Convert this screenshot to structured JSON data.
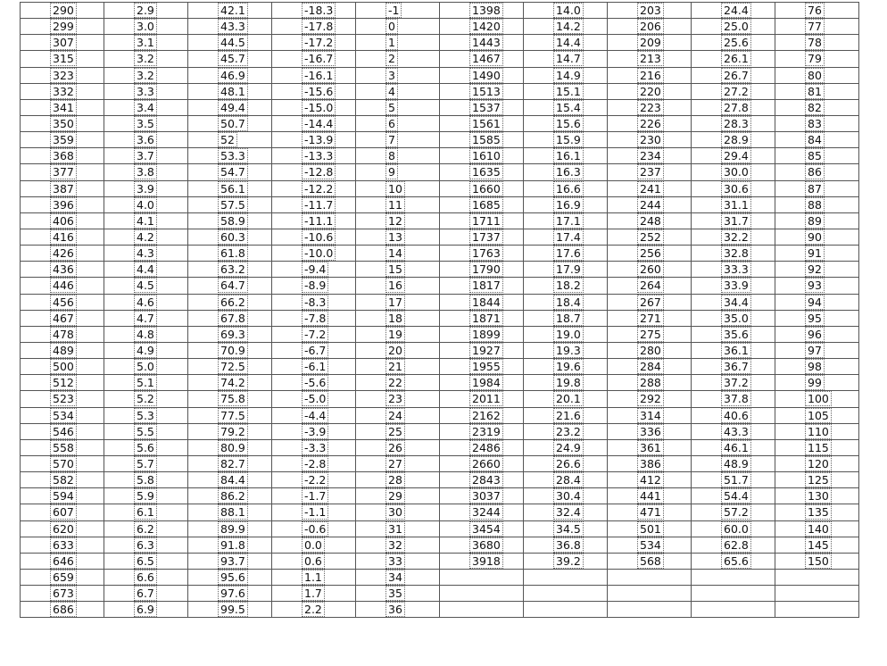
{
  "table": {
    "rows": [
      [
        "290",
        "2.9",
        "42.1",
        "-18.3",
        "-1",
        "1398",
        "14.0",
        "203",
        "24.4",
        "76"
      ],
      [
        "299",
        "3.0",
        "43.3",
        "-17.8",
        "0",
        "1420",
        "14.2",
        "206",
        "25.0",
        "77"
      ],
      [
        "307",
        "3.1",
        "44.5",
        "-17.2",
        "1",
        "1443",
        "14.4",
        "209",
        "25.6",
        "78"
      ],
      [
        "315",
        "3.2",
        "45.7",
        "-16.7",
        "2",
        "1467",
        "14.7",
        "213",
        "26.1",
        "79"
      ],
      [
        "323",
        "3.2",
        "46.9",
        "-16.1",
        "3",
        "1490",
        "14.9",
        "216",
        "26.7",
        "80"
      ],
      [
        "332",
        "3.3",
        "48.1",
        "-15.6",
        "4",
        "1513",
        "15.1",
        "220",
        "27.2",
        "81"
      ],
      [
        "341",
        "3.4",
        "49.4",
        "-15.0",
        "5",
        "1537",
        "15.4",
        "223",
        "27.8",
        "82"
      ],
      [
        "350",
        "3.5",
        "50.7",
        "-14.4",
        "6",
        "1561",
        "15.6",
        "226",
        "28.3",
        "83"
      ],
      [
        "359",
        "3.6",
        "52",
        "-13.9",
        "7",
        "1585",
        "15.9",
        "230",
        "28.9",
        "84"
      ],
      [
        "368",
        "3.7",
        "53.3",
        "-13.3",
        "8",
        "1610",
        "16.1",
        "234",
        "29.4",
        "85"
      ],
      [
        "377",
        "3.8",
        "54.7",
        "-12.8",
        "9",
        "1635",
        "16.3",
        "237",
        "30.0",
        "86"
      ],
      [
        "387",
        "3.9",
        "56.1",
        "-12.2",
        "10",
        "1660",
        "16.6",
        "241",
        "30.6",
        "87"
      ],
      [
        "396",
        "4.0",
        "57.5",
        "-11.7",
        "11",
        "1685",
        "16.9",
        "244",
        "31.1",
        "88"
      ],
      [
        "406",
        "4.1",
        "58.9",
        "-11.1",
        "12",
        "1711",
        "17.1",
        "248",
        "31.7",
        "89"
      ],
      [
        "416",
        "4.2",
        "60.3",
        "-10.6",
        "13",
        "1737",
        "17.4",
        "252",
        "32.2",
        "90"
      ],
      [
        "426",
        "4.3",
        "61.8",
        "-10.0",
        "14",
        "1763",
        "17.6",
        "256",
        "32.8",
        "91"
      ],
      [
        "436",
        "4.4",
        "63.2",
        "-9.4",
        "15",
        "1790",
        "17.9",
        "260",
        "33.3",
        "92"
      ],
      [
        "446",
        "4.5",
        "64.7",
        "-8.9",
        "16",
        "1817",
        "18.2",
        "264",
        "33.9",
        "93"
      ],
      [
        "456",
        "4.6",
        "66.2",
        "-8.3",
        "17",
        "1844",
        "18.4",
        "267",
        "34.4",
        "94"
      ],
      [
        "467",
        "4.7",
        "67.8",
        "-7.8",
        "18",
        "1871",
        "18.7",
        "271",
        "35.0",
        "95"
      ],
      [
        "478",
        "4.8",
        "69.3",
        "-7.2",
        "19",
        "1899",
        "19.0",
        "275",
        "35.6",
        "96"
      ],
      [
        "489",
        "4.9",
        "70.9",
        "-6.7",
        "20",
        "1927",
        "19.3",
        "280",
        "36.1",
        "97"
      ],
      [
        "500",
        "5.0",
        "72.5",
        "-6.1",
        "21",
        "1955",
        "19.6",
        "284",
        "36.7",
        "98"
      ],
      [
        "512",
        "5.1",
        "74.2",
        "-5.6",
        "22",
        "1984",
        "19.8",
        "288",
        "37.2",
        "99"
      ],
      [
        "523",
        "5.2",
        "75.8",
        "-5.0",
        "23",
        "2011",
        "20.1",
        "292",
        "37.8",
        "100"
      ],
      [
        "534",
        "5.3",
        "77.5",
        "-4.4",
        "24",
        "2162",
        "21.6",
        "314",
        "40.6",
        "105"
      ],
      [
        "546",
        "5.5",
        "79.2",
        "-3.9",
        "25",
        "2319",
        "23.2",
        "336",
        "43.3",
        "110"
      ],
      [
        "558",
        "5.6",
        "80.9",
        "-3.3",
        "26",
        "2486",
        "24.9",
        "361",
        "46.1",
        "115"
      ],
      [
        "570",
        "5.7",
        "82.7",
        "-2.8",
        "27",
        "2660",
        "26.6",
        "386",
        "48.9",
        "120"
      ],
      [
        "582",
        "5.8",
        "84.4",
        "-2.2",
        "28",
        "2843",
        "28.4",
        "412",
        "51.7",
        "125"
      ],
      [
        "594",
        "5.9",
        "86.2",
        "-1.7",
        "29",
        "3037",
        "30.4",
        "441",
        "54.4",
        "130"
      ],
      [
        "607",
        "6.1",
        "88.1",
        "-1.1",
        "30",
        "3244",
        "32.4",
        "471",
        "57.2",
        "135"
      ],
      [
        "620",
        "6.2",
        "89.9",
        "-0.6",
        "31",
        "3454",
        "34.5",
        "501",
        "60.0",
        "140"
      ],
      [
        "633",
        "6.3",
        "91.8",
        "0.0",
        "32",
        "3680",
        "36.8",
        "534",
        "62.8",
        "145"
      ],
      [
        "646",
        "6.5",
        "93.7",
        "0.6",
        "33",
        "3918",
        "39.2",
        "568",
        "65.6",
        "150"
      ],
      [
        "659",
        "6.6",
        "95.6",
        "1.1",
        "34"
      ],
      [
        "673",
        "6.7",
        "97.6",
        "1.7",
        "35"
      ],
      [
        "686",
        "6.9",
        "99.5",
        "2.2",
        "36"
      ]
    ]
  }
}
